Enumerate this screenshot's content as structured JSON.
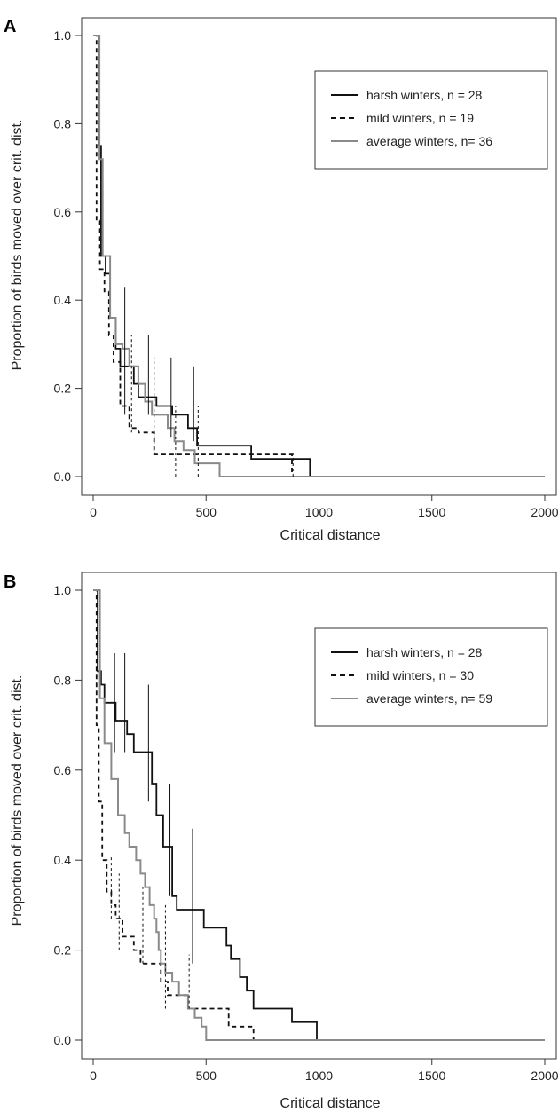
{
  "chart_data": [
    {
      "panel": "A",
      "type": "line",
      "xlabel": "Critical distance",
      "ylabel": "Proportion of birds moved over crit. dist.",
      "xlim": [
        0,
        2000
      ],
      "ylim": [
        0,
        1
      ],
      "xticks": [
        "0",
        "500",
        "1000",
        "1500",
        "2000"
      ],
      "yticks": [
        "0.0",
        "0.2",
        "0.4",
        "0.6",
        "0.8",
        "1.0"
      ],
      "legend_position": "top-right",
      "series": [
        {
          "name": "harsh winters, n = 28",
          "style": "solid",
          "color": "#111111",
          "points": [
            [
              0,
              1.0
            ],
            [
              20,
              1.0
            ],
            [
              25,
              0.75
            ],
            [
              35,
              0.5
            ],
            [
              55,
              0.46
            ],
            [
              75,
              0.36
            ],
            [
              100,
              0.29
            ],
            [
              120,
              0.25
            ],
            [
              180,
              0.21
            ],
            [
              200,
              0.18
            ],
            [
              260,
              0.18
            ],
            [
              280,
              0.16
            ],
            [
              350,
              0.14
            ],
            [
              420,
              0.11
            ],
            [
              460,
              0.07
            ],
            [
              700,
              0.04
            ],
            [
              960,
              0.0
            ],
            [
              2000,
              0.0
            ]
          ]
        },
        {
          "name": "mild winters, n = 19",
          "style": "dashed",
          "color": "#111111",
          "points": [
            [
              0,
              1.0
            ],
            [
              12,
              1.0
            ],
            [
              15,
              0.58
            ],
            [
              30,
              0.47
            ],
            [
              50,
              0.42
            ],
            [
              70,
              0.32
            ],
            [
              90,
              0.26
            ],
            [
              120,
              0.16
            ],
            [
              160,
              0.11
            ],
            [
              200,
              0.1
            ],
            [
              270,
              0.05
            ],
            [
              880,
              0.0
            ],
            [
              2000,
              0.0
            ]
          ]
        },
        {
          "name": "average winters, n= 36",
          "style": "solid",
          "color": "#8a8a8a",
          "points": [
            [
              0,
              1.0
            ],
            [
              20,
              1.0
            ],
            [
              28,
              0.72
            ],
            [
              42,
              0.5
            ],
            [
              75,
              0.36
            ],
            [
              100,
              0.3
            ],
            [
              130,
              0.29
            ],
            [
              160,
              0.25
            ],
            [
              200,
              0.21
            ],
            [
              230,
              0.17
            ],
            [
              260,
              0.14
            ],
            [
              300,
              0.14
            ],
            [
              330,
              0.11
            ],
            [
              360,
              0.08
            ],
            [
              400,
              0.06
            ],
            [
              450,
              0.03
            ],
            [
              560,
              0.0
            ],
            [
              2000,
              0.0
            ]
          ]
        }
      ],
      "error_bars": [
        {
          "series": 0,
          "x": 140,
          "low": 0.14,
          "high": 0.43
        },
        {
          "series": 0,
          "x": 245,
          "low": 0.14,
          "high": 0.32
        },
        {
          "series": 0,
          "x": 345,
          "low": 0.09,
          "high": 0.27
        },
        {
          "series": 0,
          "x": 445,
          "low": 0.08,
          "high": 0.25
        },
        {
          "series": 1,
          "x": 170,
          "low": 0.1,
          "high": 0.32
        },
        {
          "series": 1,
          "x": 270,
          "low": 0.05,
          "high": 0.27
        },
        {
          "series": 1,
          "x": 365,
          "low": 0.0,
          "high": 0.16
        },
        {
          "series": 1,
          "x": 465,
          "low": 0.0,
          "high": 0.16
        },
        {
          "series": 1,
          "x": 885,
          "low": 0.0,
          "high": 0.06
        }
      ]
    },
    {
      "panel": "B",
      "type": "line",
      "xlabel": "Critical distance",
      "ylabel": "Proportion of birds moved over crit. dist.",
      "xlim": [
        0,
        2000
      ],
      "ylim": [
        0,
        1
      ],
      "xticks": [
        "0",
        "500",
        "1000",
        "1500",
        "2000"
      ],
      "yticks": [
        "0.0",
        "0.2",
        "0.4",
        "0.6",
        "0.8",
        "1.0"
      ],
      "legend_position": "top-right",
      "series": [
        {
          "name": "harsh winters, n = 28",
          "style": "solid",
          "color": "#111111",
          "points": [
            [
              0,
              1.0
            ],
            [
              10,
              1.0
            ],
            [
              20,
              0.82
            ],
            [
              35,
              0.79
            ],
            [
              50,
              0.75
            ],
            [
              100,
              0.71
            ],
            [
              150,
              0.68
            ],
            [
              180,
              0.64
            ],
            [
              260,
              0.57
            ],
            [
              280,
              0.5
            ],
            [
              310,
              0.43
            ],
            [
              350,
              0.32
            ],
            [
              370,
              0.29
            ],
            [
              490,
              0.25
            ],
            [
              590,
              0.21
            ],
            [
              610,
              0.18
            ],
            [
              650,
              0.14
            ],
            [
              680,
              0.11
            ],
            [
              710,
              0.07
            ],
            [
              880,
              0.04
            ],
            [
              990,
              0.0
            ],
            [
              2000,
              0.0
            ]
          ]
        },
        {
          "name": "mild winters, n = 30",
          "style": "dashed",
          "color": "#111111",
          "points": [
            [
              0,
              1.0
            ],
            [
              8,
              1.0
            ],
            [
              15,
              0.7
            ],
            [
              25,
              0.53
            ],
            [
              40,
              0.4
            ],
            [
              60,
              0.33
            ],
            [
              80,
              0.3
            ],
            [
              100,
              0.27
            ],
            [
              130,
              0.23
            ],
            [
              180,
              0.2
            ],
            [
              210,
              0.17
            ],
            [
              240,
              0.17
            ],
            [
              300,
              0.13
            ],
            [
              330,
              0.1
            ],
            [
              420,
              0.07
            ],
            [
              510,
              0.07
            ],
            [
              600,
              0.03
            ],
            [
              710,
              0.0
            ],
            [
              2000,
              0.0
            ]
          ]
        },
        {
          "name": "average winters, n= 59",
          "style": "solid",
          "color": "#8a8a8a",
          "points": [
            [
              0,
              1.0
            ],
            [
              12,
              1.0
            ],
            [
              30,
              0.76
            ],
            [
              50,
              0.66
            ],
            [
              80,
              0.58
            ],
            [
              110,
              0.5
            ],
            [
              140,
              0.46
            ],
            [
              160,
              0.43
            ],
            [
              190,
              0.4
            ],
            [
              210,
              0.37
            ],
            [
              230,
              0.34
            ],
            [
              250,
              0.3
            ],
            [
              270,
              0.27
            ],
            [
              280,
              0.24
            ],
            [
              290,
              0.2
            ],
            [
              300,
              0.17
            ],
            [
              320,
              0.15
            ],
            [
              350,
              0.13
            ],
            [
              380,
              0.1
            ],
            [
              420,
              0.07
            ],
            [
              450,
              0.05
            ],
            [
              480,
              0.03
            ],
            [
              500,
              0.0
            ],
            [
              2000,
              0.0
            ]
          ]
        }
      ],
      "error_bars": [
        {
          "series": 0,
          "x": 95,
          "low": 0.64,
          "high": 0.86
        },
        {
          "series": 0,
          "x": 140,
          "low": 0.64,
          "high": 0.86
        },
        {
          "series": 0,
          "x": 245,
          "low": 0.53,
          "high": 0.79
        },
        {
          "series": 0,
          "x": 340,
          "low": 0.32,
          "high": 0.57
        },
        {
          "series": 0,
          "x": 440,
          "low": 0.17,
          "high": 0.47
        },
        {
          "series": 1,
          "x": 80,
          "low": 0.27,
          "high": 0.41
        },
        {
          "series": 1,
          "x": 115,
          "low": 0.2,
          "high": 0.37
        },
        {
          "series": 1,
          "x": 220,
          "low": 0.17,
          "high": 0.34
        },
        {
          "series": 1,
          "x": 320,
          "low": 0.07,
          "high": 0.3
        },
        {
          "series": 1,
          "x": 425,
          "low": 0.07,
          "high": 0.19
        }
      ]
    }
  ]
}
